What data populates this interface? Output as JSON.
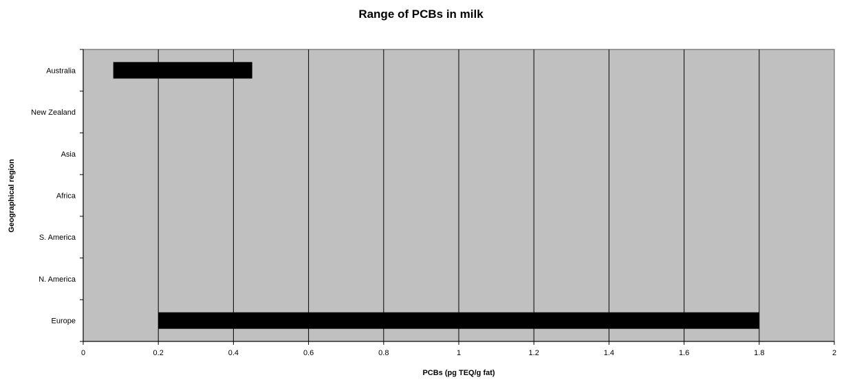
{
  "colors": {
    "plot_background": "#c0c0c0",
    "gridline": "#000000",
    "axis": "#000000",
    "bar": "#000000",
    "page_background": "#ffffff"
  },
  "chart_data": {
    "type": "bar",
    "orientation": "horizontal",
    "style": "floating range bars (min to max)",
    "title": "Range of PCBs in milk",
    "xlabel": "PCBs (pg TEQ/g fat)",
    "ylabel": "Geographical region",
    "xlim": [
      0,
      2
    ],
    "x_ticks": [
      0,
      0.2,
      0.4,
      0.6,
      0.8,
      1,
      1.2,
      1.4,
      1.6,
      1.8,
      2
    ],
    "x_tick_labels": [
      "0",
      "0.2",
      "0.4",
      "0.6",
      "0.8",
      "1",
      "1.2",
      "1.4",
      "1.6",
      "1.8",
      "2"
    ],
    "categories": [
      "Australia",
      "New Zealand",
      "Asia",
      "Africa",
      "S. America",
      "N. America",
      "Europe"
    ],
    "ranges": [
      {
        "category": "Australia",
        "min": 0.08,
        "max": 0.45
      },
      {
        "category": "New Zealand",
        "min": null,
        "max": null
      },
      {
        "category": "Asia",
        "min": null,
        "max": null
      },
      {
        "category": "Africa",
        "min": null,
        "max": null
      },
      {
        "category": "S. America",
        "min": null,
        "max": null
      },
      {
        "category": "N. America",
        "min": null,
        "max": null
      },
      {
        "category": "Europe",
        "min": 0.2,
        "max": 1.8
      }
    ],
    "grid": {
      "vertical": true,
      "horizontal": false
    },
    "legend": "none"
  }
}
